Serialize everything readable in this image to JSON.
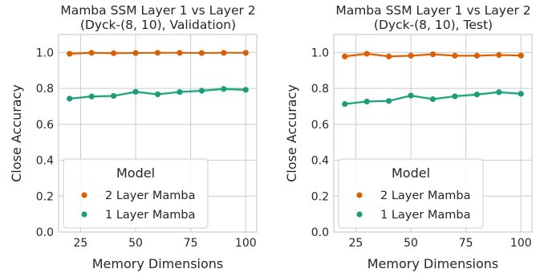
{
  "chart_data": [
    {
      "type": "line",
      "title": "Mamba SSM Layer 1 vs Layer 2\n(Dyck-(8, 10), Validation)",
      "xlabel": "Memory Dimensions",
      "ylabel": "Close Accuracy",
      "xlim": [
        15,
        105
      ],
      "ylim": [
        0.0,
        1.1
      ],
      "x_ticks": [
        25,
        50,
        75,
        100
      ],
      "y_ticks": [
        0.0,
        0.2,
        0.4,
        0.6,
        0.8,
        1.0
      ],
      "grid": true,
      "legend_title": "Model",
      "legend_position": "lower-left",
      "x": [
        20,
        30,
        40,
        50,
        60,
        70,
        80,
        90,
        100
      ],
      "series": [
        {
          "name": "2 Layer Mamba",
          "color": "#d95f02",
          "values": [
            0.993,
            0.998,
            0.996,
            0.997,
            0.998,
            0.998,
            0.997,
            0.998,
            0.998
          ],
          "band": [
            0.012,
            0.006,
            0.006,
            0.005,
            0.004,
            0.004,
            0.004,
            0.004,
            0.004
          ]
        },
        {
          "name": "1 Layer Mamba",
          "color": "#1b9e77",
          "values": [
            0.743,
            0.755,
            0.758,
            0.781,
            0.767,
            0.78,
            0.787,
            0.797,
            0.792
          ],
          "band": [
            0.008,
            0.008,
            0.008,
            0.008,
            0.008,
            0.01,
            0.01,
            0.012,
            0.012
          ]
        }
      ]
    },
    {
      "type": "line",
      "title": "Mamba SSM Layer 1 vs Layer 2\n(Dyck-(8, 10), Test)",
      "xlabel": "Memory Dimensions",
      "ylabel": "Close Accuracy",
      "xlim": [
        15,
        105
      ],
      "ylim": [
        0.0,
        1.1
      ],
      "x_ticks": [
        25,
        50,
        75,
        100
      ],
      "y_ticks": [
        0.0,
        0.2,
        0.4,
        0.6,
        0.8,
        1.0
      ],
      "grid": true,
      "legend_title": "Model",
      "legend_position": "lower-left",
      "x": [
        20,
        30,
        40,
        50,
        60,
        70,
        80,
        90,
        100
      ],
      "series": [
        {
          "name": "2 Layer Mamba",
          "color": "#d95f02",
          "values": [
            0.978,
            0.993,
            0.978,
            0.982,
            0.99,
            0.982,
            0.982,
            0.986,
            0.983
          ],
          "band": [
            0.012,
            0.008,
            0.008,
            0.008,
            0.008,
            0.008,
            0.008,
            0.008,
            0.008
          ]
        },
        {
          "name": "1 Layer Mamba",
          "color": "#1b9e77",
          "values": [
            0.713,
            0.727,
            0.73,
            0.76,
            0.74,
            0.756,
            0.766,
            0.779,
            0.77
          ],
          "band": [
            0.008,
            0.008,
            0.008,
            0.008,
            0.008,
            0.01,
            0.01,
            0.01,
            0.01
          ]
        }
      ]
    }
  ]
}
